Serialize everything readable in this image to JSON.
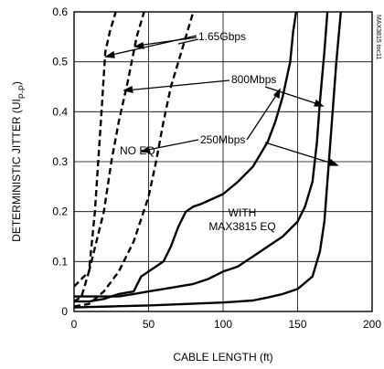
{
  "chart_data": {
    "type": "line",
    "xlabel": "CABLE LENGTH (ft)",
    "ylabel": "DETERMINISTIC JITTER (UIP-P)",
    "ylabel_main": "DETERMINISTIC JITTER (UI",
    "ylabel_sub": "P-P",
    "ylabel_close": ")",
    "xlim": [
      0,
      200
    ],
    "ylim": [
      0,
      0.6
    ],
    "xticks": [
      0,
      50,
      100,
      150,
      200
    ],
    "yticks": [
      0,
      0.1,
      0.2,
      0.3,
      0.4,
      0.5,
      0.6
    ],
    "xtick_labels": [
      "0",
      "50",
      "100",
      "150",
      "200"
    ],
    "ytick_labels": [
      "0",
      "0.1",
      "0.2",
      "0.3",
      "0.4",
      "0.5",
      "0.6"
    ],
    "grid": true,
    "side_tag": "MAX3815 toc11",
    "annotations": {
      "rate_1": "1.65Gbps",
      "rate_2": "800Mbps",
      "rate_3": "250Mbps",
      "no_eq": "NO EQ",
      "with_line1": "WITH",
      "with_line2": "MAX3815 EQ"
    },
    "series": [
      {
        "style": "dashed",
        "x": [
          0,
          5,
          10,
          14,
          18,
          21,
          24,
          28
        ],
        "y": [
          0.02,
          0.03,
          0.08,
          0.2,
          0.38,
          0.52,
          0.56,
          0.6
        ]
      },
      {
        "style": "dashed",
        "x": [
          0,
          10,
          20,
          25,
          30,
          36,
          42,
          47
        ],
        "y": [
          0.05,
          0.08,
          0.2,
          0.3,
          0.38,
          0.46,
          0.55,
          0.6
        ]
      },
      {
        "style": "dashed",
        "x": [
          0,
          10,
          20,
          30,
          40,
          50,
          55,
          60,
          65,
          72,
          80
        ],
        "y": [
          0.01,
          0.015,
          0.04,
          0.08,
          0.14,
          0.23,
          0.3,
          0.38,
          0.45,
          0.52,
          0.6
        ]
      },
      {
        "style": "solid",
        "x": [
          0,
          10,
          20,
          30,
          40,
          45,
          50,
          60,
          65,
          70,
          75,
          80,
          85,
          100,
          110,
          120,
          130,
          135,
          140,
          145,
          147,
          149
        ],
        "y": [
          0.02,
          0.02,
          0.025,
          0.035,
          0.04,
          0.07,
          0.08,
          0.1,
          0.13,
          0.17,
          0.2,
          0.21,
          0.215,
          0.235,
          0.26,
          0.29,
          0.34,
          0.38,
          0.43,
          0.5,
          0.56,
          0.6
        ]
      },
      {
        "style": "solid",
        "x": [
          0,
          10,
          20,
          30,
          40,
          50,
          60,
          70,
          80,
          90,
          100,
          110,
          115,
          120,
          130,
          140,
          150,
          155,
          160,
          163,
          165,
          168,
          170
        ],
        "y": [
          0.03,
          0.03,
          0.03,
          0.03,
          0.035,
          0.04,
          0.045,
          0.05,
          0.055,
          0.065,
          0.08,
          0.09,
          0.1,
          0.11,
          0.13,
          0.15,
          0.18,
          0.21,
          0.26,
          0.34,
          0.42,
          0.52,
          0.6
        ]
      },
      {
        "style": "solid",
        "x": [
          0,
          25,
          50,
          75,
          100,
          120,
          130,
          140,
          150,
          160,
          165,
          168,
          170,
          173,
          176,
          179
        ],
        "y": [
          0.008,
          0.01,
          0.012,
          0.015,
          0.018,
          0.022,
          0.028,
          0.035,
          0.045,
          0.07,
          0.12,
          0.18,
          0.26,
          0.38,
          0.5,
          0.6
        ]
      }
    ]
  }
}
